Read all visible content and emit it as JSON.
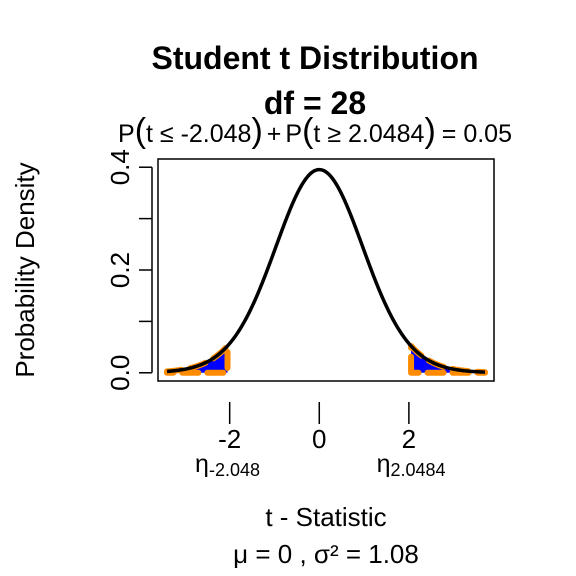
{
  "chart_data": {
    "type": "line",
    "title": "Student t Distribution",
    "subtitle": "df  =  28",
    "prob_expression": {
      "p1": "P",
      "le_term": "t ≤ -2.048",
      "plus": "+",
      "p2": "P",
      "ge_term": "t ≥ 2.0484",
      "equals": "= 0.05"
    },
    "xlabel": "t - Statistic",
    "ylabel": "Probability Density",
    "footer": "μ =  0 , σ² =  1.08",
    "df": 28,
    "mu": 0,
    "variance": 1.08,
    "xlim": [
      -3.6,
      3.9
    ],
    "ylim": [
      -0.016,
      0.416
    ],
    "curve_x_range": [
      -3.4,
      3.7
    ],
    "x_ticks": [
      {
        "value": -2,
        "label": "-2"
      },
      {
        "value": 0,
        "label": "0"
      },
      {
        "value": 2,
        "label": "2"
      }
    ],
    "y_ticks": [
      {
        "value": 0.0,
        "label": "0.0"
      },
      {
        "value": 0.1,
        "label": ""
      },
      {
        "value": 0.2,
        "label": "0.2"
      },
      {
        "value": 0.3,
        "label": ""
      },
      {
        "value": 0.4,
        "label": "0.4"
      }
    ],
    "critical_values": [
      {
        "value": -2.048,
        "symbol": "η",
        "subscript": "-2.048",
        "tail": "left"
      },
      {
        "value": 2.0484,
        "symbol": "η",
        "subscript": "2.0484",
        "tail": "right"
      }
    ],
    "colors": {
      "curve": "#000000",
      "tail_fill": "#0000ff",
      "tail_outline": "#ff8c00",
      "axis": "#000000"
    }
  }
}
